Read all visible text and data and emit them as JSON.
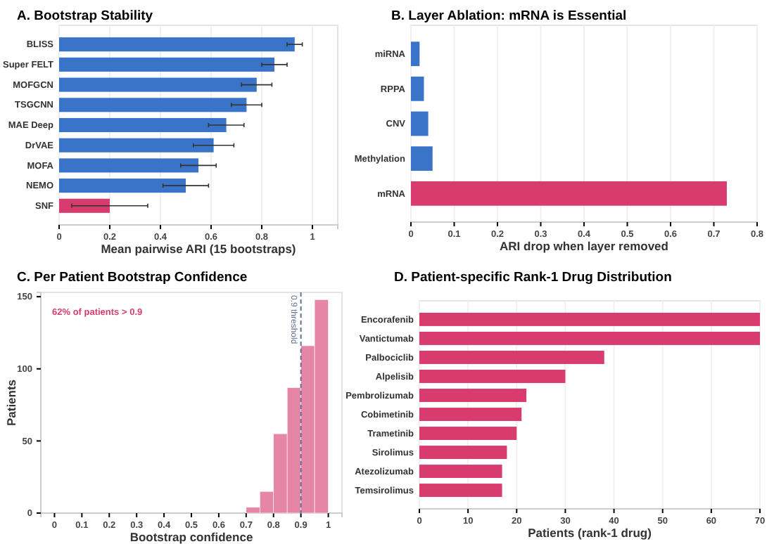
{
  "chart_data": [
    {
      "type": "bar",
      "orientation": "horizontal",
      "title": "A. Bootstrap Stability",
      "xlabel": "Mean pairwise ARI (15 bootstraps)",
      "categories": [
        "BLISS",
        "Super FELT",
        "MOFGCN",
        "TSGCNN",
        "MAE Deep",
        "DrVAE",
        "MOFA",
        "NEMO",
        "SNF"
      ],
      "values": [
        0.93,
        0.85,
        0.78,
        0.74,
        0.66,
        0.61,
        0.55,
        0.5,
        0.2
      ],
      "errors": [
        0.03,
        0.05,
        0.06,
        0.06,
        0.07,
        0.08,
        0.07,
        0.09,
        0.15
      ],
      "colors": [
        "#3a74c8",
        "#3a74c8",
        "#3a74c8",
        "#3a74c8",
        "#3a74c8",
        "#3a74c8",
        "#3a74c8",
        "#3a74c8",
        "#d83c6e"
      ],
      "xlim": [
        0,
        1.1
      ],
      "xticks": [
        0,
        0.2,
        0.4,
        0.6,
        0.8,
        1
      ],
      "grid": "x"
    },
    {
      "type": "bar",
      "orientation": "horizontal",
      "title": "B. Layer Ablation: mRNA is Essential",
      "xlabel": "ARI drop when layer removed",
      "categories": [
        "miRNA",
        "RPPA",
        "CNV",
        "Methylation",
        "mRNA"
      ],
      "values": [
        0.02,
        0.03,
        0.04,
        0.05,
        0.73
      ],
      "colors": [
        "#3a74c8",
        "#3a74c8",
        "#3a74c8",
        "#3a74c8",
        "#d83c6e"
      ],
      "xlim": [
        0,
        0.8
      ],
      "xticks": [
        0,
        0.1,
        0.2,
        0.3,
        0.4,
        0.5,
        0.6,
        0.7,
        0.8
      ],
      "grid": "x"
    },
    {
      "type": "histogram",
      "title": "C. Per Patient Bootstrap Confidence",
      "xlabel": "Bootstrap confidence",
      "ylabel": "Patients",
      "bins": [
        0.7,
        0.75,
        0.8,
        0.85,
        0.9,
        0.95,
        1
      ],
      "values": [
        4,
        15,
        55,
        87,
        116,
        148
      ],
      "color": "#e586a6",
      "xlim": [
        -0.05,
        1.05
      ],
      "xticks": [
        0,
        0.1,
        0.2,
        0.3,
        0.4,
        0.5,
        0.6,
        0.7,
        0.8,
        0.9,
        1
      ],
      "ylim": [
        0,
        153
      ],
      "yticks": [
        0,
        50,
        100,
        150
      ],
      "ref_lines": [
        {
          "axis": "x",
          "value": 0.9,
          "label": "0.9 threshold",
          "color": "#5f7394",
          "line_style": "dashed"
        }
      ],
      "annotations": [
        "62% of patients > 0.9"
      ]
    },
    {
      "type": "bar",
      "orientation": "horizontal",
      "title": "D. Patient-specific Rank-1 Drug Distribution",
      "xlabel": "Patients (rank-1 drug)",
      "categories": [
        "Encorafenib",
        "Vantictumab",
        "Palbociclib",
        "Alpelisib",
        "Pembrolizumab",
        "Cobimetinib",
        "Trametinib",
        "Sirolimus",
        "Atezolizumab",
        "Temsirolimus"
      ],
      "values": [
        70,
        70,
        38,
        30,
        22,
        21,
        20,
        18,
        17,
        17
      ],
      "color": "#d83c6e",
      "xlim": [
        0,
        70
      ],
      "xticks": [
        0,
        10,
        20,
        30,
        40,
        50,
        60,
        70
      ],
      "grid": "x"
    }
  ]
}
